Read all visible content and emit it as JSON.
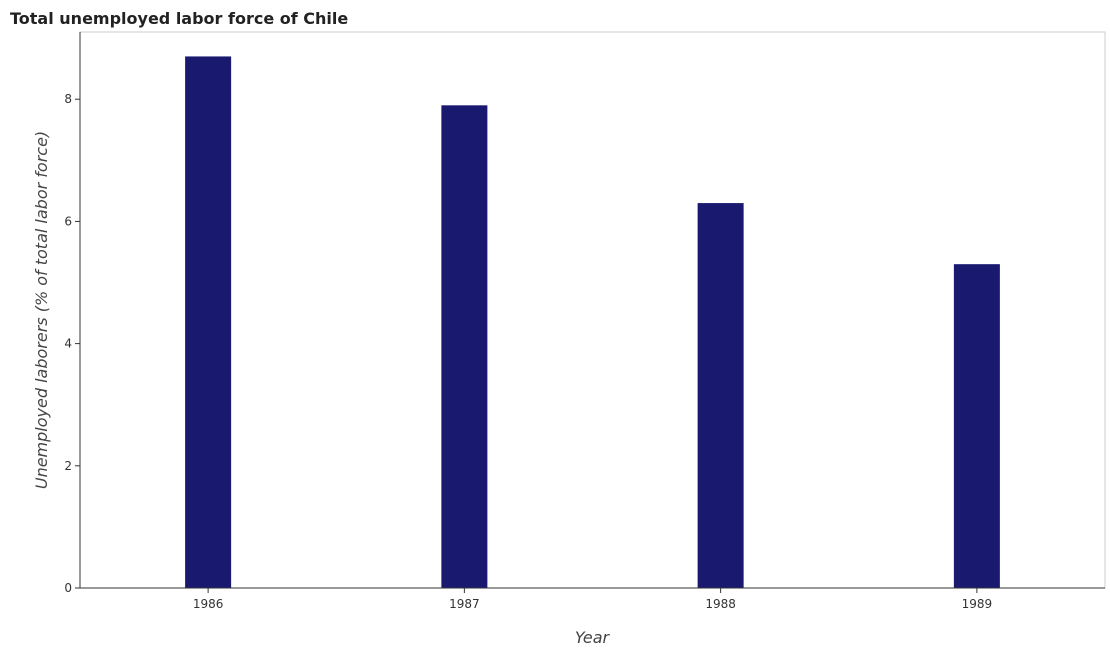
{
  "chart_data": {
    "type": "bar",
    "title": "Total unemployed labor force of Chile",
    "xlabel": "Year",
    "ylabel": "Unemployed laborers (% of total labor force)",
    "categories": [
      "1986",
      "1987",
      "1988",
      "1989"
    ],
    "values": [
      8.7,
      7.9,
      6.3,
      5.3
    ],
    "ylim": [
      0,
      9.1
    ],
    "yticks": [
      0,
      2,
      4,
      6,
      8
    ],
    "grid": false,
    "colors": {
      "bar": "#191970"
    }
  }
}
